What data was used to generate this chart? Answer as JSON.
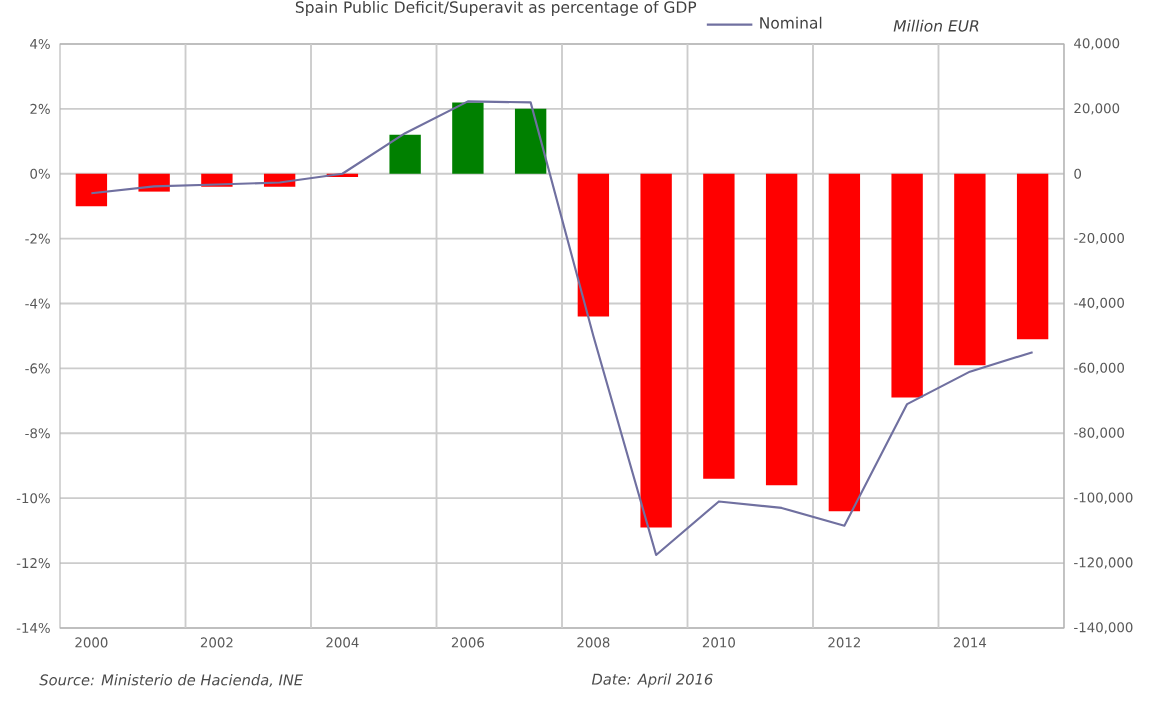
{
  "chart_data": {
    "type": "bar",
    "title": "Spain Public Deficit/Superavit as percentage of GDP",
    "y2label": "Million EUR",
    "categories": [
      "2000",
      null,
      "2002",
      null,
      "2004",
      null,
      "2006",
      null,
      "2008",
      null,
      "2010",
      null,
      "2012",
      null,
      "2014",
      null
    ],
    "series": [
      {
        "colors": [
          "#ff0000",
          "#ff0000",
          "#ff0000",
          "#ff0000",
          "#ff0000",
          "#008000",
          "#008000",
          "#008000",
          "#ff0000",
          "#ff0000",
          "#ff0000",
          "#ff0000",
          "#ff0000",
          "#ff0000",
          "#ff0000",
          "#ff0000"
        ],
        "values": [
          -1.0,
          -0.55,
          -0.4,
          -0.4,
          -0.1,
          1.2,
          2.2,
          2.0,
          -4.4,
          -10.9,
          -9.4,
          -9.6,
          -10.4,
          -6.9,
          -5.9,
          -5.1
        ]
      },
      {
        "type": "line",
        "name": "Nominal",
        "axis": "y2",
        "color": "#7070a0",
        "values": [
          -6000,
          -3900,
          -3300,
          -2700,
          0,
          12500,
          22300,
          22000,
          -50000,
          -117500,
          -101000,
          -103000,
          -108500,
          -71000,
          -61000,
          -55000
        ]
      }
    ],
    "ylim": [
      -14,
      4
    ],
    "yticks": [
      {
        "value": -14,
        "label": "-14%"
      },
      {
        "value": -12,
        "label": "-12%"
      },
      {
        "value": -10,
        "label": "-10%"
      },
      {
        "value": -8,
        "label": "-8%"
      },
      {
        "value": -6,
        "label": "-6%"
      },
      {
        "value": -4,
        "label": "-4%"
      },
      {
        "value": -2,
        "label": "-2%"
      },
      {
        "value": 0,
        "label": "0%"
      },
      {
        "value": 2,
        "label": "2%"
      },
      {
        "value": 4,
        "label": "4%"
      }
    ],
    "y2lim": [
      -140000,
      40000
    ],
    "y2ticks": [
      {
        "value": -140000,
        "label": "-140,000"
      },
      {
        "value": -120000,
        "label": "-120,000"
      },
      {
        "value": -100000,
        "label": "-100,000"
      },
      {
        "value": -80000,
        "label": "-80,000"
      },
      {
        "value": -60000,
        "label": "-60,000"
      },
      {
        "value": -40000,
        "label": "-40,000"
      },
      {
        "value": -20000,
        "label": "-20,000"
      },
      0,
      {
        "value": 20000,
        "label": "20,000"
      },
      {
        "value": 40000,
        "label": "40,000"
      }
    ],
    "grid": true,
    "legend": "top right",
    "annotations": [
      "Source: Ministerio de Hacienda, INE",
      "Date: April 2016"
    ]
  }
}
